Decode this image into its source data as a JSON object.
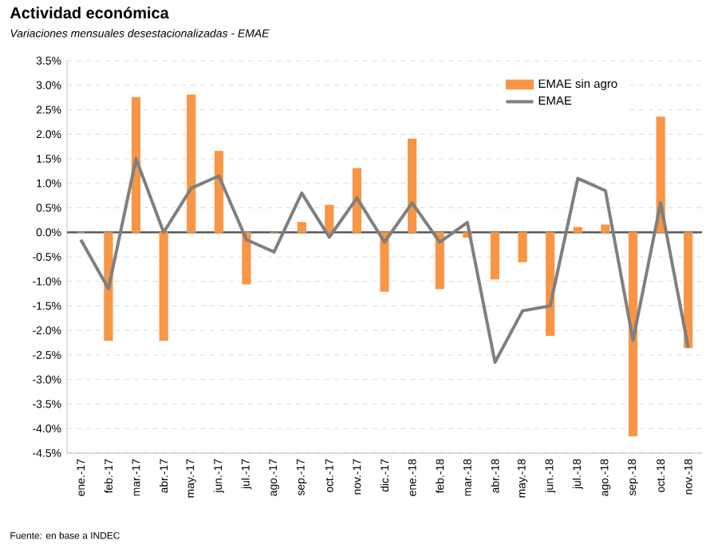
{
  "chart_data": {
    "type": "bar",
    "title": "Actividad económica",
    "subtitle": "Variaciones mensuales desestacionalizadas - EMAE",
    "categories": [
      "ene.-17",
      "feb.-17",
      "mar.-17",
      "abr.-17",
      "may.-17",
      "jun.-17",
      "jul.-17",
      "ago.-17",
      "sep.-17",
      "oct.-17",
      "nov.-17",
      "dic.-17",
      "ene.-18",
      "feb.-18",
      "mar.-18",
      "abr.-18",
      "may.-18",
      "jun.-18",
      "jul.-18",
      "ago.-18",
      "sep.-18",
      "oct.-18",
      "nov.-18"
    ],
    "series": [
      {
        "name": "EMAE sin agro",
        "color": "#f79646",
        "values": [
          0.0,
          -2.2,
          2.75,
          -2.2,
          2.8,
          1.65,
          -1.05,
          0.0,
          0.2,
          0.55,
          1.3,
          -1.2,
          1.9,
          -1.15,
          -0.1,
          -0.95,
          -0.6,
          -2.1,
          0.1,
          0.15,
          -4.15,
          2.35,
          -2.35
        ]
      },
      {
        "name": "EMAE",
        "type": "line",
        "color": "#7f7f7f",
        "values": [
          -0.15,
          -1.15,
          1.5,
          0.0,
          0.9,
          1.15,
          -0.15,
          -0.4,
          0.8,
          -0.1,
          0.7,
          -0.2,
          0.6,
          -0.2,
          0.2,
          -2.65,
          -1.6,
          -1.5,
          1.1,
          0.85,
          -2.2,
          0.6,
          -2.35
        ]
      }
    ],
    "ylim": [
      -4.5,
      3.5
    ],
    "yticks": [
      {
        "value": -4.5,
        "label": "-4.5%"
      },
      {
        "value": -4.0,
        "label": "-4.0%"
      },
      {
        "value": -3.5,
        "label": "-3.5%"
      },
      {
        "value": -3.0,
        "label": "-3.0%"
      },
      {
        "value": -2.5,
        "label": "-2.5%"
      },
      {
        "value": -2.0,
        "label": "-2.0%"
      },
      {
        "value": -1.5,
        "label": "-1.5%"
      },
      {
        "value": -1.0,
        "label": "-1.0%"
      },
      {
        "value": -0.5,
        "label": "-0.5%"
      },
      {
        "value": 0.0,
        "label": "0.0%"
      },
      {
        "value": 0.5,
        "label": "0.5%"
      },
      {
        "value": 1.0,
        "label": "1.0%"
      },
      {
        "value": 1.5,
        "label": "1.5%"
      },
      {
        "value": 2.0,
        "label": "2.0%"
      },
      {
        "value": 2.5,
        "label": "2.5%"
      },
      {
        "value": 3.0,
        "label": "3.0%"
      },
      {
        "value": 3.5,
        "label": "3.5%"
      }
    ],
    "grid": "y",
    "legend": "top right",
    "annotations": [
      "Fuente: en base a INDEC"
    ]
  }
}
